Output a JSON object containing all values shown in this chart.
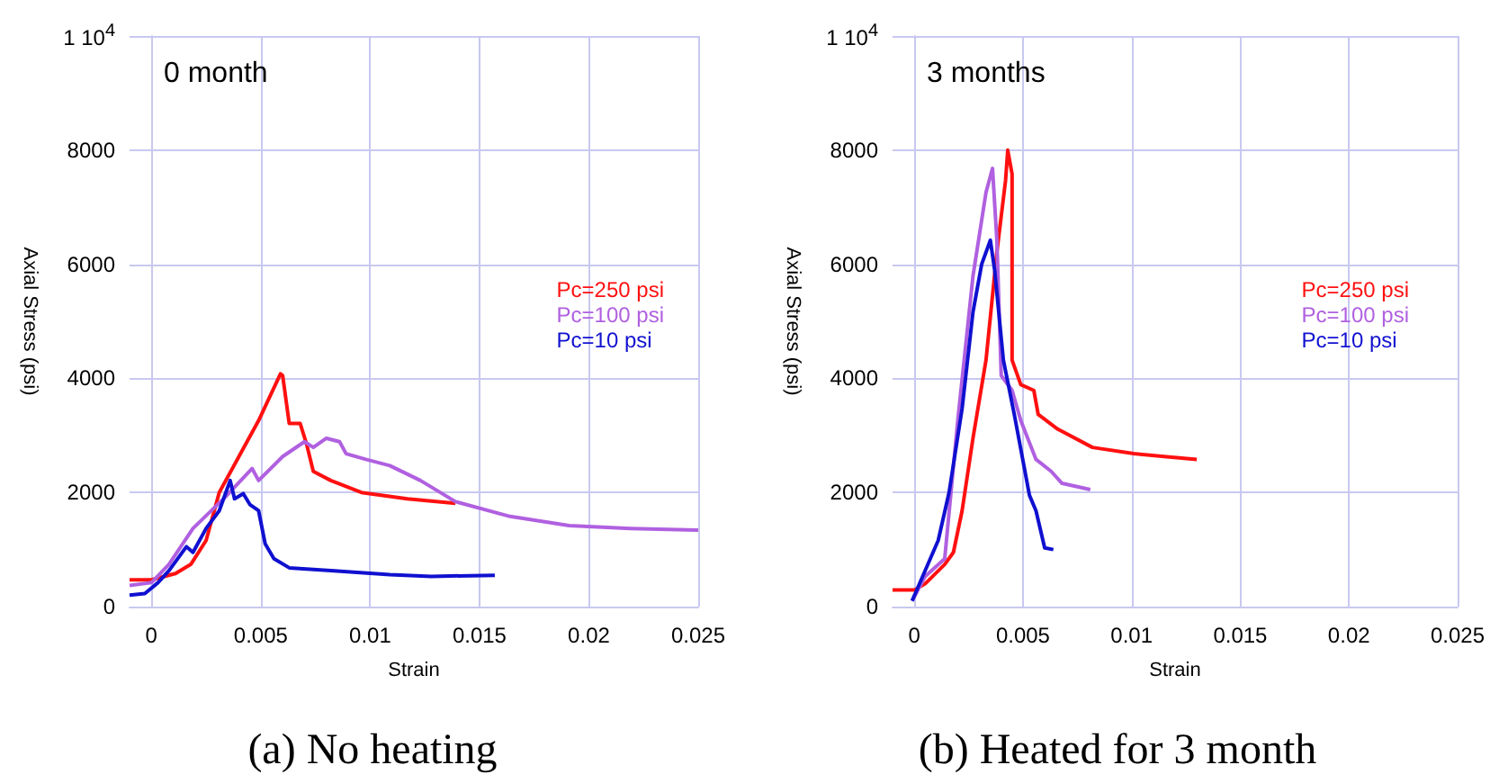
{
  "chart_data": [
    {
      "type": "line",
      "title": "0 month",
      "xlabel": "Strain",
      "ylabel": "Axial Stress (psi)",
      "annotations": [
        "(a) No heating"
      ],
      "xlim": [
        -0.001,
        0.025
      ],
      "xticks": [
        0,
        0.005,
        0.01,
        0.015,
        0.02,
        0.025
      ],
      "ylim": [
        0,
        10000
      ],
      "yticks": [
        0,
        2000,
        4000,
        6000,
        8000,
        {
          "value": 10000,
          "label": "1 10$^{4}$"
        }
      ],
      "grid": true,
      "legend": "right",
      "marker": "none",
      "line_style": "solid",
      "series": [
        {
          "name": "Pc=250 psi",
          "color": "#ff1010",
          "x": [
            -0.001,
            0,
            0.0011,
            0.0018,
            0.0025,
            0.0031,
            0.004,
            0.0049,
            0.0059,
            0.006,
            0.0063,
            0.0068,
            0.0071,
            0.0074,
            0.0082,
            0.0096,
            0.0117,
            0.0139
          ],
          "values": [
            470,
            470,
            580,
            740,
            1160,
            2000,
            2630,
            3260,
            4080,
            4050,
            3210,
            3210,
            2840,
            2370,
            2210,
            2000,
            1890,
            1810
          ]
        },
        {
          "name": "Pc=100 psi",
          "color": "#b060e0",
          "x": [
            -0.001,
            0,
            0.0008,
            0.0019,
            0.0033,
            0.0046,
            0.0049,
            0.006,
            0.007,
            0.0074,
            0.008,
            0.0086,
            0.0089,
            0.0098,
            0.0109,
            0.0123,
            0.0139,
            0.0164,
            0.0191,
            0.0219,
            0.025
          ],
          "values": [
            370,
            420,
            740,
            1370,
            1890,
            2420,
            2210,
            2630,
            2890,
            2790,
            2950,
            2890,
            2680,
            2580,
            2470,
            2210,
            1840,
            1580,
            1420,
            1370,
            1340
          ]
        },
        {
          "name": "Pc=10 psi",
          "color": "#1010d0",
          "x": [
            -0.001,
            -0.0003,
            0.0003,
            0.0008,
            0.0016,
            0.0019,
            0.0025,
            0.0031,
            0.0036,
            0.0038,
            0.0042,
            0.0045,
            0.0049,
            0.0052,
            0.0056,
            0.0063,
            0.0082,
            0.0109,
            0.0128,
            0.0157
          ],
          "values": [
            200,
            230,
            420,
            630,
            1050,
            950,
            1370,
            1680,
            2210,
            1890,
            1980,
            1790,
            1680,
            1100,
            840,
            680,
            630,
            560,
            530,
            550
          ]
        }
      ]
    },
    {
      "type": "line",
      "title": "3 months",
      "xlabel": "Strain",
      "ylabel": "Axial Stress (psi)",
      "annotations": [
        "(b) Heated for 3 month"
      ],
      "xlim": [
        -0.001,
        0.025
      ],
      "xticks": [
        0,
        0.005,
        0.01,
        0.015,
        0.02,
        0.025
      ],
      "ylim": [
        0,
        10000
      ],
      "yticks": [
        0,
        2000,
        4000,
        6000,
        8000,
        {
          "value": 10000,
          "label": "1 10$^{4}$"
        }
      ],
      "grid": true,
      "legend": "right",
      "marker": "none",
      "line_style": "solid",
      "series": [
        {
          "name": "Pc=250 psi",
          "color": "#ff1010",
          "x": [
            -0.001,
            0,
            0.0005,
            0.0014,
            0.0018,
            0.0022,
            0.0027,
            0.0033,
            0.0038,
            0.0042,
            0.0043,
            0.0045,
            0.0045,
            0.0049,
            0.0055,
            0.0057,
            0.0066,
            0.0082,
            0.0101,
            0.0115,
            0.013
          ],
          "values": [
            290,
            290,
            400,
            740,
            950,
            1680,
            2950,
            4320,
            6210,
            7470,
            8000,
            7580,
            4320,
            3890,
            3790,
            3370,
            3110,
            2790,
            2680,
            2630,
            2580
          ]
        },
        {
          "name": "Pc=100 psi",
          "color": "#b060e0",
          "x": [
            -0.0001,
            0.0005,
            0.0014,
            0.002,
            0.0027,
            0.0033,
            0.0036,
            0.0038,
            0.004,
            0.0045,
            0.0049,
            0.0056,
            0.0063,
            0.0068,
            0.0081
          ],
          "values": [
            100,
            530,
            840,
            3260,
            5790,
            7260,
            7680,
            6420,
            4050,
            3790,
            3260,
            2580,
            2370,
            2160,
            2050
          ]
        },
        {
          "name": "Pc=10 psi",
          "color": "#1010d0",
          "x": [
            -0.0001,
            0.0005,
            0.0011,
            0.0016,
            0.0022,
            0.0027,
            0.0031,
            0.0035,
            0.0037,
            0.0041,
            0.0046,
            0.0053,
            0.0056,
            0.006,
            0.0064
          ],
          "values": [
            100,
            630,
            1160,
            2000,
            3470,
            5160,
            6000,
            6420,
            5890,
            4320,
            3370,
            1950,
            1680,
            1030,
            1000
          ]
        }
      ]
    }
  ]
}
